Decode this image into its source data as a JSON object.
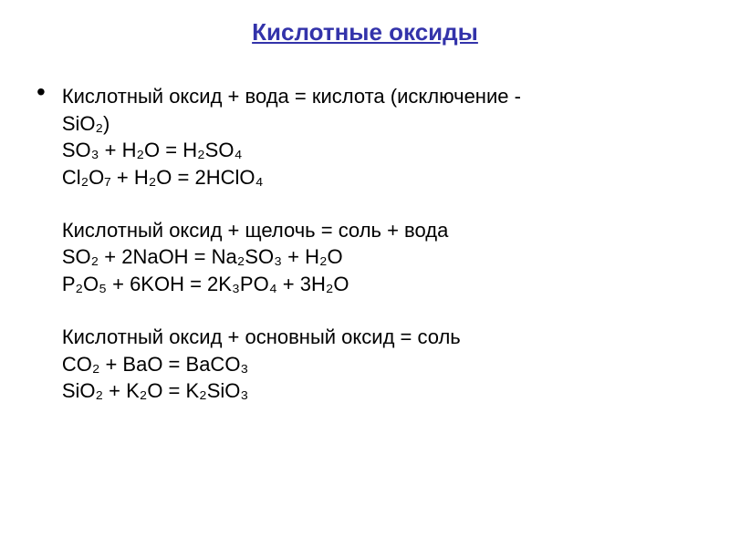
{
  "title": "Кислотные оксиды",
  "colors": {
    "title_color": "#3333aa",
    "text_color": "#000000",
    "background": "#ffffff"
  },
  "typography": {
    "title_fontsize": 26,
    "body_fontsize": 22,
    "title_weight": "bold",
    "title_underline": true
  },
  "groups": [
    {
      "lines": [
        "Кислотный оксид + вода = кислота (исключение -",
        "SiO₂)",
        "SO₃ + H₂O = H₂SO₄",
        "Cl₂O₇ + H₂O = 2HClO₄"
      ]
    },
    {
      "lines": [
        "Кислотный оксид + щелочь = соль + вода",
        "SO₂ + 2NaOH = Na₂SO₃ + H₂O",
        "P₂O₅ + 6KOH = 2K₃PO₄ + 3H₂O"
      ]
    },
    {
      "lines": [
        "Кислотный оксид + основный оксид = соль",
        "CO₂ + BaO = BaCO₃",
        "SiO₂ + K₂O = K₂SiO₃"
      ]
    }
  ]
}
